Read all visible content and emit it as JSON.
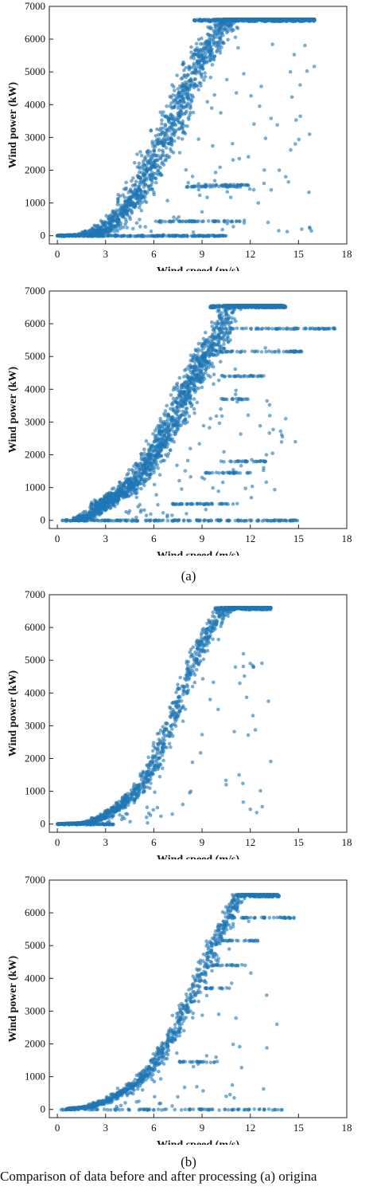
{
  "figure": {
    "label_a": "(a)",
    "label_b": "(b)",
    "caption": "Comparison of data before and after processing (a) origina"
  },
  "chart_data": [
    {
      "type": "scatter",
      "xlabel": "Wind speed (m/s)",
      "ylabel": "Wind power (kW)",
      "xlim": [
        -0.5,
        18
      ],
      "ylim": [
        -250,
        7000
      ],
      "xticks": [
        0,
        3,
        6,
        9,
        12,
        15,
        18
      ],
      "yticks": [
        0,
        1000,
        2000,
        3000,
        4000,
        5000,
        6000,
        7000
      ],
      "grid": false,
      "color": "#1f77b4",
      "curve": [
        [
          0,
          0
        ],
        [
          2,
          30
        ],
        [
          3,
          200
        ],
        [
          4,
          700
        ],
        [
          5,
          1400
        ],
        [
          6,
          2300
        ],
        [
          7,
          3300
        ],
        [
          8,
          4400
        ],
        [
          9,
          5400
        ],
        [
          10,
          6200
        ],
        [
          10.5,
          6600
        ],
        [
          16,
          6600
        ]
      ],
      "spread_speed": 1.5,
      "rated_power": 6600,
      "rated_band": [
        8.5,
        16.0
      ],
      "curtail_lines": [
        [
          440,
          6,
          11.5
        ],
        [
          1500,
          8,
          11.5
        ],
        [
          1550,
          9,
          12
        ]
      ],
      "zero_band": [
        0,
        10.5
      ],
      "outliers": [
        [
          15.1,
          4600
        ],
        [
          14.8,
          2800
        ],
        [
          13.3,
          1400
        ],
        [
          13.8,
          2000
        ],
        [
          14.2,
          1800
        ],
        [
          15.2,
          200
        ],
        [
          15.8,
          150
        ],
        [
          12.5,
          1000
        ]
      ],
      "n_points": 3400
    },
    {
      "type": "scatter",
      "xlabel": "Wind speed (m/s)",
      "ylabel": "Wind power (kW)",
      "xlim": [
        -0.5,
        18
      ],
      "ylim": [
        -250,
        7000
      ],
      "xticks": [
        0,
        3,
        6,
        9,
        12,
        15,
        18
      ],
      "yticks": [
        0,
        1000,
        2000,
        3000,
        4000,
        5000,
        6000,
        7000
      ],
      "grid": false,
      "color": "#1f77b4",
      "curve": [
        [
          1,
          0
        ],
        [
          2,
          150
        ],
        [
          3,
          550
        ],
        [
          4,
          850
        ],
        [
          5,
          1300
        ],
        [
          6,
          2000
        ],
        [
          7,
          2900
        ],
        [
          8,
          3900
        ],
        [
          9,
          4800
        ],
        [
          10,
          5600
        ],
        [
          10.7,
          6550
        ],
        [
          14,
          6550
        ]
      ],
      "spread_speed": 1.3,
      "rated_power": 6550,
      "rated_band": [
        9.5,
        14.2
      ],
      "curtail_lines": [
        [
          5850,
          10,
          17.3
        ],
        [
          5150,
          10,
          15.2
        ],
        [
          4400,
          10,
          13.0
        ],
        [
          3700,
          10,
          12.0
        ],
        [
          1800,
          10,
          13.0
        ],
        [
          1450,
          9,
          12.0
        ],
        [
          500,
          7,
          11.5
        ]
      ],
      "zero_band": [
        0,
        15.0
      ],
      "outliers": [
        [
          14.0,
          2550
        ],
        [
          14.2,
          3100
        ],
        [
          14.8,
          2400
        ],
        [
          13.0,
          2000
        ]
      ],
      "n_points": 3200
    },
    {
      "type": "scatter",
      "xlabel": "Wind speed (m/s)",
      "ylabel": "Wind power (kW)",
      "xlim": [
        -0.5,
        18
      ],
      "ylim": [
        -250,
        7000
      ],
      "xticks": [
        0,
        3,
        6,
        9,
        12,
        15,
        18
      ],
      "yticks": [
        0,
        1000,
        2000,
        3000,
        4000,
        5000,
        6000,
        7000
      ],
      "grid": false,
      "color": "#1f77b4",
      "curve": [
        [
          0,
          0
        ],
        [
          2,
          40
        ],
        [
          3,
          250
        ],
        [
          4,
          600
        ],
        [
          5,
          1000
        ],
        [
          6,
          1800
        ],
        [
          7,
          3000
        ],
        [
          8,
          4300
        ],
        [
          9,
          5500
        ],
        [
          10,
          6300
        ],
        [
          10.5,
          6600
        ],
        [
          13.3,
          6600
        ]
      ],
      "spread_speed": 0.8,
      "rated_power": 6600,
      "rated_band": [
        9.8,
        13.3
      ],
      "curtail_lines": [],
      "zero_band": [
        0,
        3.5
      ],
      "outliers": [
        [
          12.0,
          4900
        ],
        [
          12.2,
          4800
        ],
        [
          11.3,
          1500
        ],
        [
          10.5,
          1200
        ],
        [
          12.4,
          350
        ],
        [
          12.0,
          450
        ],
        [
          7.8,
          600
        ],
        [
          8.3,
          1000
        ],
        [
          9.5,
          3800
        ],
        [
          10.0,
          3500
        ]
      ],
      "n_points": 1800
    },
    {
      "type": "scatter",
      "xlabel": "Wind speed (m/s)",
      "ylabel": "Wind power (kW)",
      "xlim": [
        -0.5,
        18
      ],
      "ylim": [
        -250,
        7000
      ],
      "xticks": [
        0,
        3,
        6,
        9,
        12,
        15,
        18
      ],
      "yticks": [
        0,
        1000,
        2000,
        3000,
        4000,
        5000,
        6000,
        7000
      ],
      "grid": false,
      "color": "#1f77b4",
      "curve": [
        [
          0.5,
          0
        ],
        [
          2,
          80
        ],
        [
          3,
          250
        ],
        [
          4,
          500
        ],
        [
          5,
          850
        ],
        [
          6,
          1350
        ],
        [
          7,
          2100
        ],
        [
          8,
          3100
        ],
        [
          9,
          4200
        ],
        [
          10,
          5300
        ],
        [
          11,
          6200
        ],
        [
          11.3,
          6550
        ],
        [
          13.7,
          6550
        ]
      ],
      "spread_speed": 0.8,
      "rated_power": 6550,
      "rated_band": [
        11.2,
        13.8
      ],
      "curtail_lines": [
        [
          5850,
          10.5,
          14.8
        ],
        [
          5150,
          10.0,
          12.5
        ],
        [
          4400,
          9.5,
          11.7
        ],
        [
          3700,
          9.0,
          10.8
        ],
        [
          1450,
          7.5,
          10.0
        ]
      ],
      "zero_band": [
        0,
        14.0
      ],
      "outliers": [
        [
          11.0,
          350
        ],
        [
          10.5,
          400
        ]
      ],
      "n_points": 1700
    }
  ]
}
